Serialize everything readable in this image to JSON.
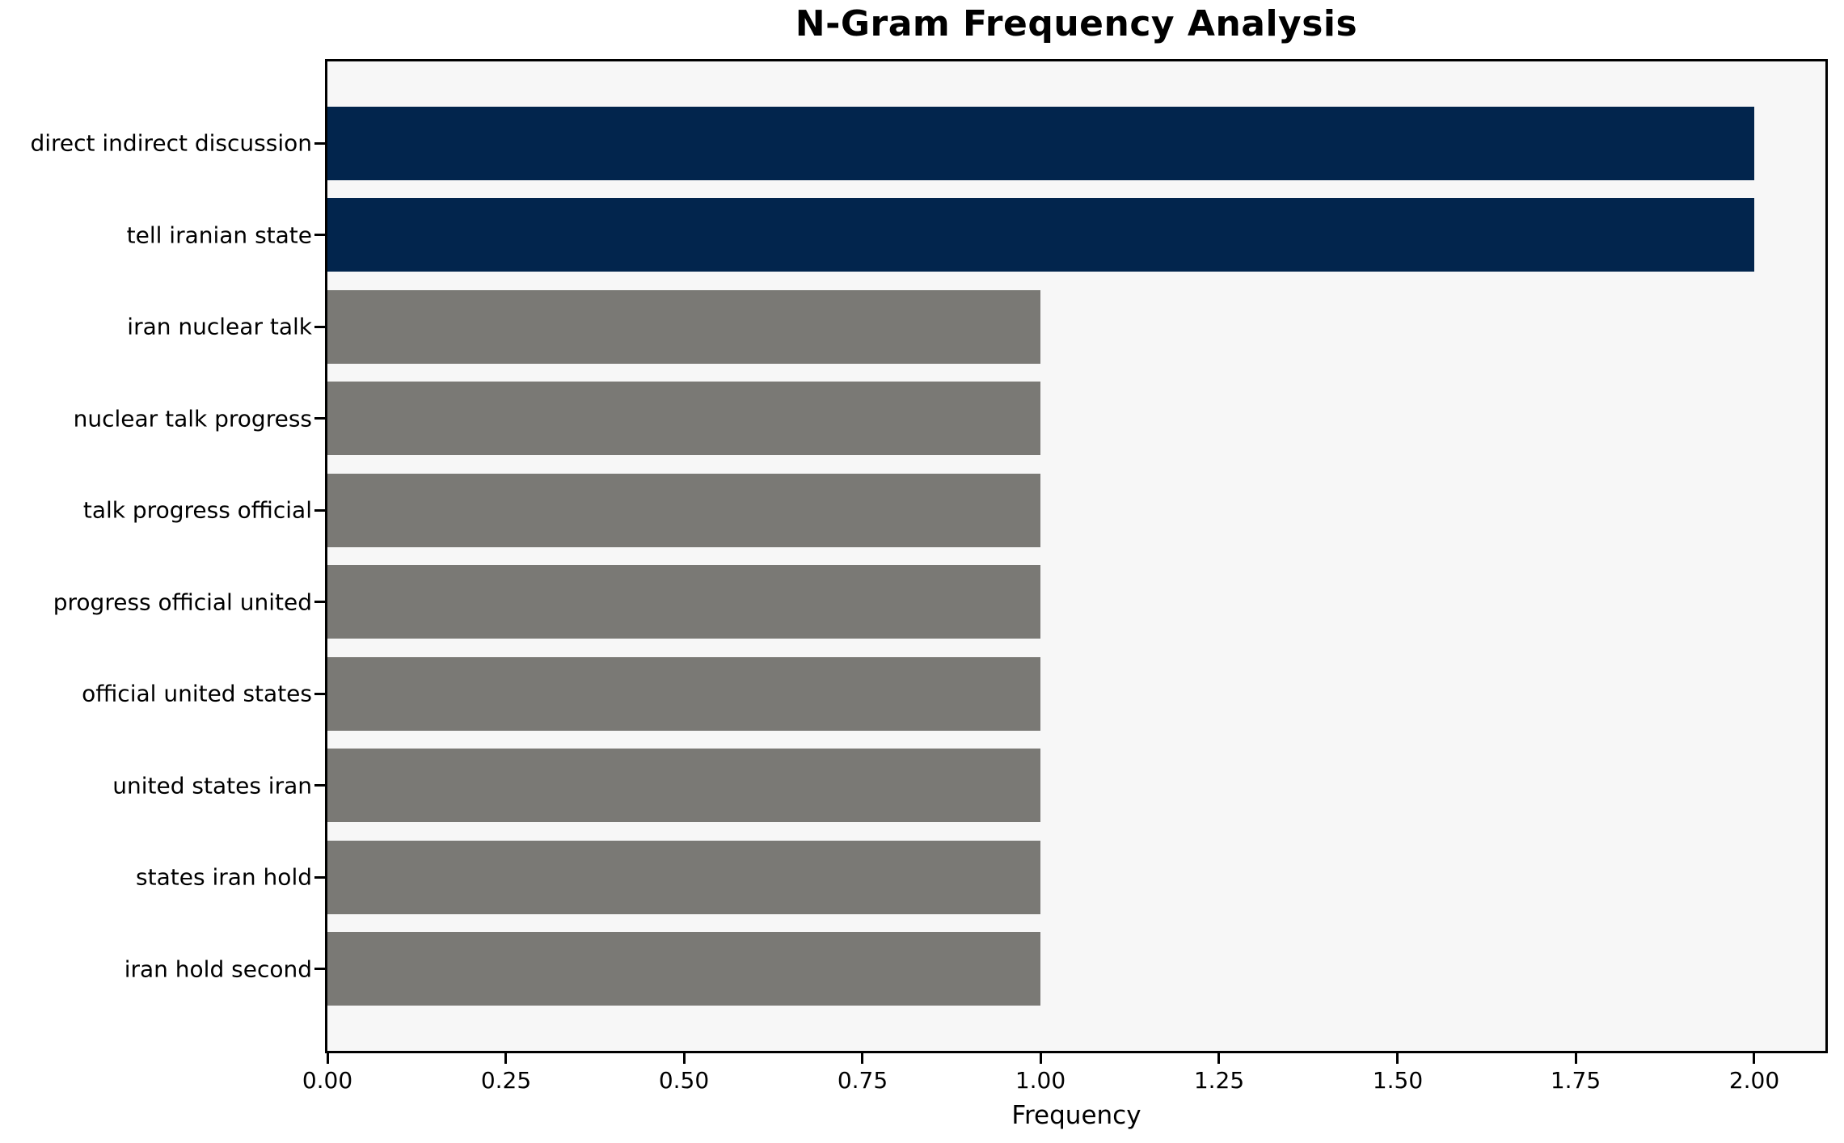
{
  "chart_data": {
    "type": "bar",
    "orientation": "horizontal",
    "title": "N-Gram Frequency Analysis",
    "xlabel": "Frequency",
    "ylabel": "",
    "categories": [
      "direct indirect discussion",
      "tell iranian state",
      "iran nuclear talk",
      "nuclear talk progress",
      "talk progress official",
      "progress official united",
      "official united states",
      "united states iran",
      "states iran hold",
      "iran hold second"
    ],
    "values": [
      2,
      2,
      1,
      1,
      1,
      1,
      1,
      1,
      1,
      1
    ],
    "bar_colors": [
      "#02254d",
      "#02254d",
      "#7a7975",
      "#7a7975",
      "#7a7975",
      "#7a7975",
      "#7a7975",
      "#7a7975",
      "#7a7975",
      "#7a7975"
    ],
    "xlim": [
      0,
      2.1
    ],
    "xticks": [
      0,
      0.25,
      0.5,
      0.75,
      1.0,
      1.25,
      1.5,
      1.75,
      2.0
    ],
    "xtick_labels": [
      "0.00",
      "0.25",
      "0.50",
      "0.75",
      "1.00",
      "1.25",
      "1.50",
      "1.75",
      "2.00"
    ],
    "grid": false,
    "legend": "none",
    "colors": {
      "highlight": "#02254d",
      "default": "#7a7975",
      "plot_background": "#f7f7f7",
      "figure_background": "#ffffff",
      "spine": "#000000",
      "text": "#000000"
    }
  }
}
